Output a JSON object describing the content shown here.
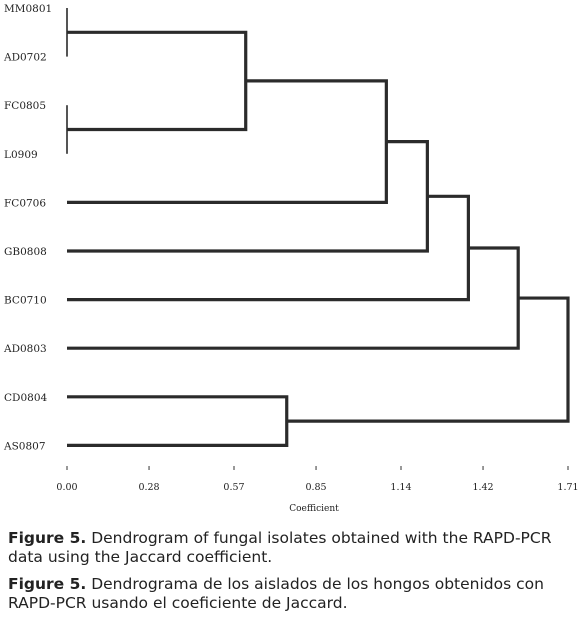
{
  "chart_data": {
    "type": "dendrogram",
    "xlabel": "Coefficient",
    "ylabel": "",
    "xlim": [
      0.0,
      1.71
    ],
    "x_ticks": [
      "0.00",
      "0.28",
      "0.57",
      "0.85",
      "1.14",
      "1.42",
      "1.71"
    ],
    "leaves": [
      "MM0801",
      "AD0702",
      "FC0805",
      "L0909",
      "FC0706",
      "GB0808",
      "BC0710",
      "AD0803",
      "CD0804",
      "AS0807"
    ],
    "merges": [
      {
        "left": "MM0801",
        "right": "AD0702",
        "height": 0.0
      },
      {
        "left": "FC0805",
        "right": "L0909",
        "height": 0.0
      },
      {
        "left": "MM0801+AD0702",
        "right": "FC0805+L0909",
        "height": 0.61
      },
      {
        "left": "MM0801+AD0702+FC0805+L0909",
        "right": "FC0706",
        "height": 1.09
      },
      {
        "left": "MM0801+AD0702+FC0805+L0909+FC0706",
        "right": "GB0808",
        "height": 1.23
      },
      {
        "left": "MM0801+AD0702+FC0805+L0909+FC0706+GB0808",
        "right": "BC0710",
        "height": 1.37
      },
      {
        "left": "MM0801+AD0702+FC0805+L0909+FC0706+GB0808+BC0710",
        "right": "AD0803",
        "height": 1.54
      },
      {
        "left": "CD0804",
        "right": "AS0807",
        "height": 0.75
      },
      {
        "left": "MM0801+AD0702+FC0805+L0909+FC0706+GB0808+BC0710+AD0803",
        "right": "CD0804+AS0807",
        "height": 1.71
      }
    ]
  },
  "captions": [
    {
      "label": "Figure 5.",
      "text": " Dendrogram of fungal isolates obtained with the RAPD-PCR data using the Jaccard coefficient."
    },
    {
      "label": "Figure 5.",
      "text": " Dendrograma de los aislados de los hongos obtenidos con RAPD-PCR usando el coeficiente de Jaccard."
    }
  ]
}
